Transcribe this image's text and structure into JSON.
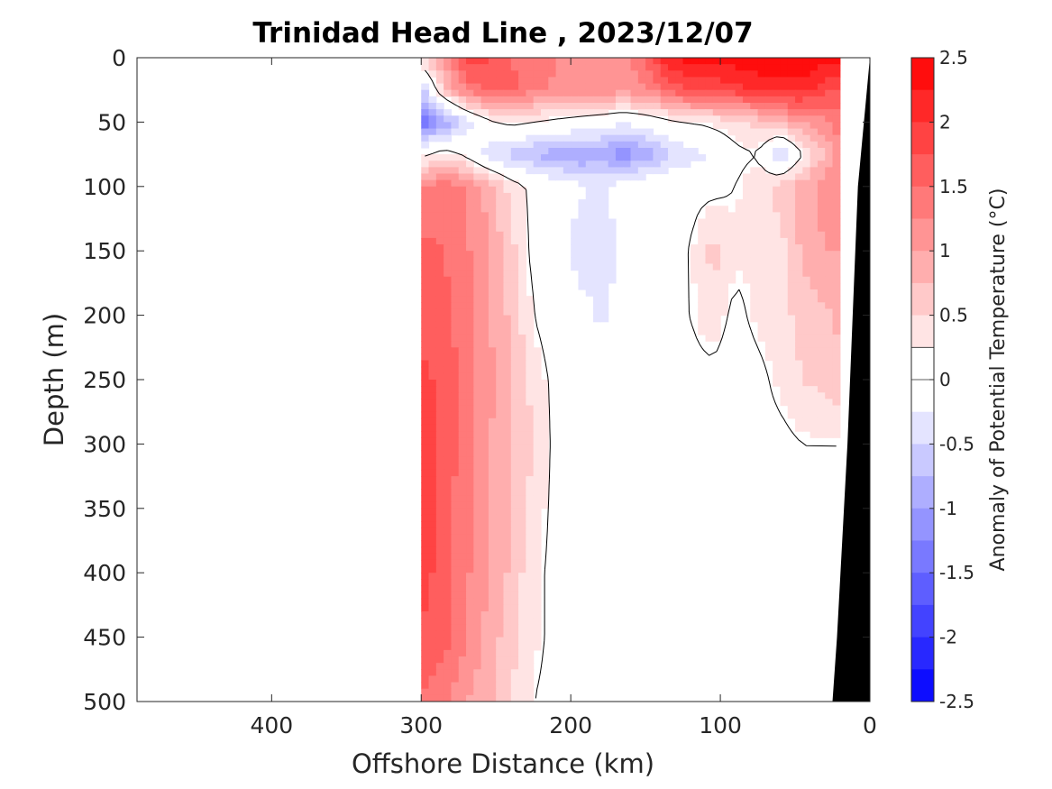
{
  "chart_data": {
    "type": "heatmap",
    "title": "Trinidad Head Line , 2023/12/07",
    "xlabel": "Offshore Distance (km)",
    "ylabel": "Depth (m)",
    "xlim": [
      490,
      0
    ],
    "ylim": [
      0,
      500
    ],
    "xticks": [
      "400",
      "300",
      "200",
      "100",
      "0"
    ],
    "yticks": [
      "0",
      "50",
      "100",
      "150",
      "200",
      "250",
      "300",
      "350",
      "400",
      "450",
      "500"
    ],
    "colorbar": {
      "label": "Anomaly of Potential Temperature (°C)",
      "ticks": [
        "2.5",
        "2",
        "1.5",
        "1",
        "0.5",
        "0",
        "-0.5",
        "-1",
        "-1.5",
        "-2",
        "-2.5"
      ],
      "range": [
        -2.5,
        2.5
      ],
      "step": 0.25
    },
    "colors": {
      "warm": "#ff0000",
      "cool": "#0000ff",
      "neutral": "#ffffff",
      "bathymetry": "#000000",
      "contour": "#000000"
    },
    "data_extent_km": [
      0,
      300
    ],
    "grid_x_km": [
      300,
      285,
      270,
      255,
      240,
      225,
      210,
      195,
      180,
      165,
      150,
      135,
      120,
      105,
      90,
      75,
      60,
      45,
      30,
      20
    ],
    "grid_depth_m": [
      0,
      25,
      50,
      75,
      100,
      150,
      200,
      250,
      300,
      350,
      400,
      450,
      500
    ],
    "anomaly_grid": [
      [
        0.5,
        1.0,
        1.9,
        1.8,
        1.5,
        1.3,
        1.3,
        1.0,
        1.0,
        1.0,
        1.6,
        2.2,
        2.4,
        2.4,
        2.4,
        2.5,
        2.5,
        2.5,
        2.4,
        2.3
      ],
      [
        -0.6,
        0.6,
        1.3,
        1.6,
        1.6,
        1.3,
        1.2,
        1.2,
        1.2,
        1.1,
        1.2,
        1.5,
        1.8,
        1.8,
        1.9,
        2.0,
        2.1,
        2.1,
        1.8,
        1.7
      ],
      [
        -1.5,
        -1.0,
        -0.4,
        0.1,
        0.3,
        0.2,
        0.1,
        0.0,
        -0.1,
        -0.2,
        -0.1,
        0.1,
        0.2,
        0.3,
        0.4,
        0.6,
        0.8,
        1.0,
        1.2,
        1.4
      ],
      [
        0.1,
        0.4,
        0.1,
        -0.4,
        -0.6,
        -0.8,
        -0.9,
        -1.0,
        -0.9,
        -1.2,
        -0.9,
        -0.6,
        -0.4,
        -0.2,
        0.1,
        0.2,
        -0.6,
        0.2,
        0.8,
        1.1
      ],
      [
        1.2,
        1.4,
        1.3,
        0.9,
        0.4,
        0.1,
        0.0,
        -0.2,
        -0.3,
        -0.1,
        0.0,
        0.1,
        0.1,
        0.1,
        0.2,
        0.4,
        0.6,
        0.9,
        1.1,
        1.2
      ],
      [
        1.6,
        1.5,
        1.3,
        1.0,
        0.6,
        0.1,
        0.0,
        -0.4,
        -0.4,
        -0.2,
        0.1,
        0.1,
        0.2,
        0.6,
        0.3,
        0.3,
        0.4,
        0.8,
        1.0,
        1.0
      ],
      [
        1.7,
        1.6,
        1.3,
        1.0,
        0.7,
        0.2,
        0.0,
        -0.1,
        -0.3,
        -0.1,
        0.1,
        0.1,
        0.2,
        0.4,
        0.1,
        0.3,
        0.4,
        0.6,
        0.7,
        0.8
      ],
      [
        1.8,
        1.7,
        1.4,
        1.1,
        0.8,
        0.4,
        0.1,
        0.0,
        0.0,
        0.0,
        0.1,
        0.1,
        0.1,
        0.1,
        0.0,
        0.1,
        0.3,
        0.5,
        0.6,
        0.7
      ],
      [
        1.8,
        1.7,
        1.4,
        1.0,
        0.8,
        0.5,
        0.1,
        -0.1,
        0.0,
        0.0,
        0.0,
        0.1,
        0.1,
        0.1,
        0.1,
        0.1,
        0.1,
        0.2,
        0.2,
        0.2
      ],
      [
        1.9,
        1.6,
        1.3,
        1.0,
        0.7,
        0.4,
        0.1,
        0.0,
        0.0,
        0.0,
        0.0,
        0.0,
        0.0,
        0.0,
        0.1,
        0.1,
        0.1,
        0.1,
        0.1,
        0.1
      ],
      [
        1.9,
        1.6,
        1.3,
        1.0,
        0.7,
        0.3,
        0.1,
        0.0,
        0.0,
        0.0,
        0.0,
        0.0,
        0.0,
        0.0,
        0.0,
        0.1,
        0.1,
        0.1,
        0.0,
        0.0
      ],
      [
        1.7,
        1.6,
        1.3,
        0.9,
        0.6,
        0.3,
        0.1,
        -0.1,
        0.0,
        0.0,
        0.0,
        0.1,
        0.1,
        -0.1,
        0.0,
        0.1,
        0.1,
        0.0,
        -0.3,
        0.0
      ],
      [
        1.5,
        1.3,
        1.0,
        0.8,
        0.5,
        0.2,
        0.1,
        -0.1,
        0.0,
        0.0,
        0.0,
        0.1,
        0.1,
        -0.1,
        0.0,
        0.1,
        0.1,
        0.0,
        -0.2,
        0.0
      ]
    ],
    "bathymetry": [
      [
        0,
        0
      ],
      [
        8,
        100
      ],
      [
        15,
        300
      ],
      [
        22,
        450
      ],
      [
        25,
        500
      ]
    ]
  }
}
